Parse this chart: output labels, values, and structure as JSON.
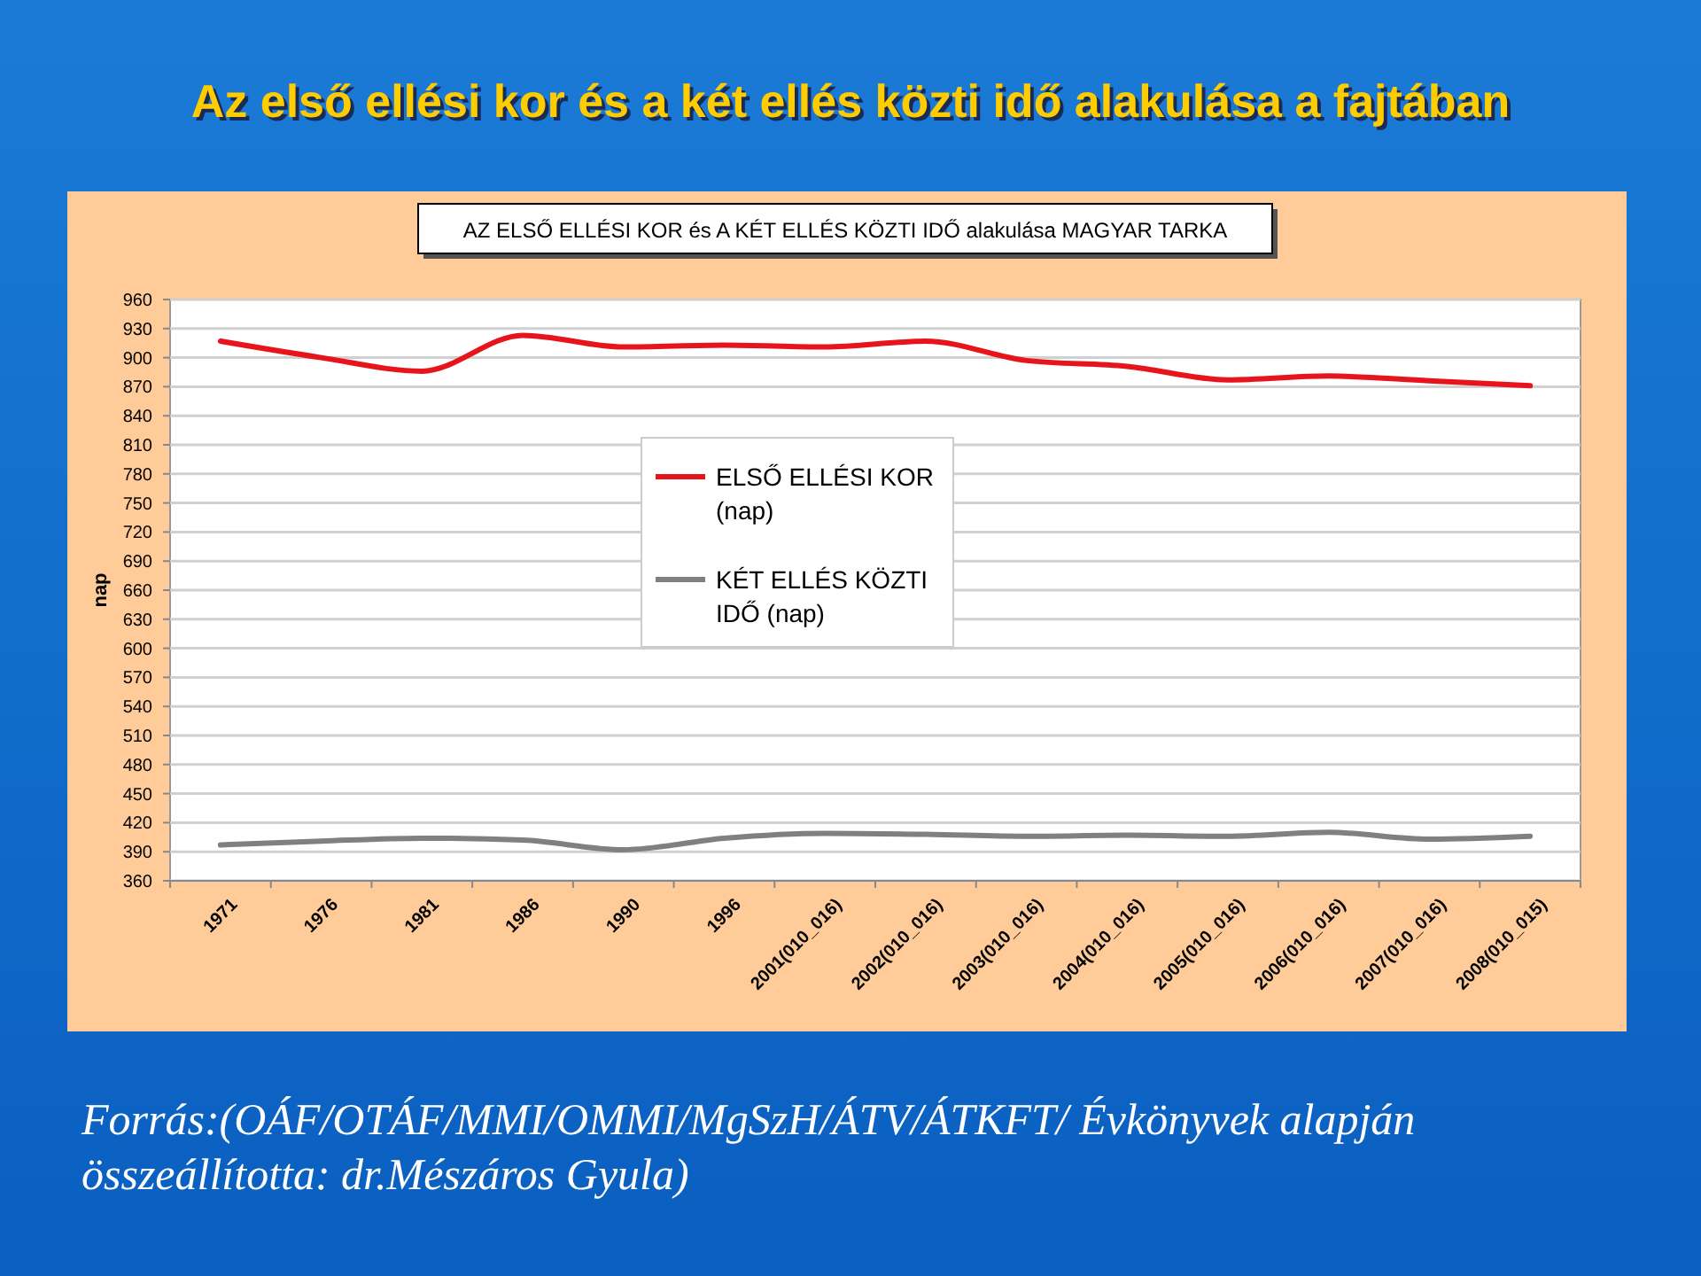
{
  "chart_data": {
    "type": "line",
    "title": "Az első ellési kor és a két ellés közti idő alakulása a fajtában",
    "subtitle": "AZ ELSŐ ELLÉSI KOR és A KÉT ELLÉS KÖZTI IDŐ alakulása MAGYAR TARKA",
    "ylabel": "nap",
    "categories": [
      "1971",
      "1976",
      "1981",
      "1986",
      "1990",
      "1996",
      "2001(010_016)",
      "2002(010_016)",
      "2003(010_016)",
      "2004(010_016)",
      "2005(010_016)",
      "2006(010_016)",
      "2007(010_016)",
      "2008(010_015)"
    ],
    "series": [
      {
        "name": "ELSŐ ELLÉSI KOR (nap)",
        "color": "#e8141c",
        "values": [
          917,
          900,
          886,
          923,
          911,
          913,
          911,
          917,
          897,
          891,
          877,
          881,
          876,
          871
        ]
      },
      {
        "name": "KÉT ELLÉS KÖZTI IDŐ (nap)",
        "color": "#808080",
        "values": [
          397,
          401,
          404,
          402,
          392,
          404,
          409,
          408,
          406,
          407,
          406,
          410,
          403,
          406
        ]
      }
    ],
    "ylim": [
      360,
      960
    ],
    "yticks": [
      360,
      390,
      420,
      450,
      480,
      510,
      540,
      570,
      600,
      630,
      660,
      690,
      720,
      750,
      780,
      810,
      840,
      870,
      900,
      930,
      960
    ],
    "grid": "y",
    "legend": "center",
    "marker": "none",
    "line_style": "solid",
    "annotations": [
      "Forrás:(OÁF/OTÁF/MMI/OMMI/MgSzH/ÁTV/ÁTKFT/ Évkönyvek alapján összeállította: dr.Mészáros Gyula)"
    ]
  }
}
